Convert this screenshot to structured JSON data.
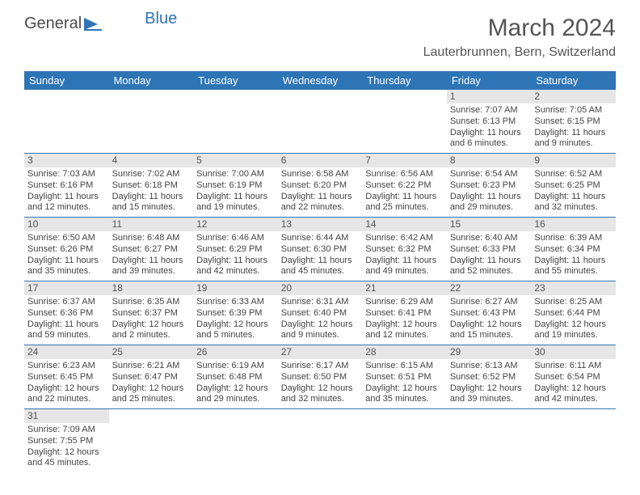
{
  "logo": {
    "text1": "General",
    "text2": "Blue"
  },
  "title": "March 2024",
  "location": "Lauterbrunnen, Bern, Switzerland",
  "colors": {
    "header_bg": "#2e75b6",
    "header_text": "#ffffff",
    "daynum_bg": "#e6e6e6",
    "border": "#2e75b6",
    "text": "#444444",
    "bg": "#ffffff"
  },
  "day_headers": [
    "Sunday",
    "Monday",
    "Tuesday",
    "Wednesday",
    "Thursday",
    "Friday",
    "Saturday"
  ],
  "weeks": [
    [
      null,
      null,
      null,
      null,
      null,
      {
        "n": "1",
        "rise": "Sunrise: 7:07 AM",
        "set": "Sunset: 6:13 PM",
        "day": "Daylight: 11 hours and 6 minutes."
      },
      {
        "n": "2",
        "rise": "Sunrise: 7:05 AM",
        "set": "Sunset: 6:15 PM",
        "day": "Daylight: 11 hours and 9 minutes."
      }
    ],
    [
      {
        "n": "3",
        "rise": "Sunrise: 7:03 AM",
        "set": "Sunset: 6:16 PM",
        "day": "Daylight: 11 hours and 12 minutes."
      },
      {
        "n": "4",
        "rise": "Sunrise: 7:02 AM",
        "set": "Sunset: 6:18 PM",
        "day": "Daylight: 11 hours and 15 minutes."
      },
      {
        "n": "5",
        "rise": "Sunrise: 7:00 AM",
        "set": "Sunset: 6:19 PM",
        "day": "Daylight: 11 hours and 19 minutes."
      },
      {
        "n": "6",
        "rise": "Sunrise: 6:58 AM",
        "set": "Sunset: 6:20 PM",
        "day": "Daylight: 11 hours and 22 minutes."
      },
      {
        "n": "7",
        "rise": "Sunrise: 6:56 AM",
        "set": "Sunset: 6:22 PM",
        "day": "Daylight: 11 hours and 25 minutes."
      },
      {
        "n": "8",
        "rise": "Sunrise: 6:54 AM",
        "set": "Sunset: 6:23 PM",
        "day": "Daylight: 11 hours and 29 minutes."
      },
      {
        "n": "9",
        "rise": "Sunrise: 6:52 AM",
        "set": "Sunset: 6:25 PM",
        "day": "Daylight: 11 hours and 32 minutes."
      }
    ],
    [
      {
        "n": "10",
        "rise": "Sunrise: 6:50 AM",
        "set": "Sunset: 6:26 PM",
        "day": "Daylight: 11 hours and 35 minutes."
      },
      {
        "n": "11",
        "rise": "Sunrise: 6:48 AM",
        "set": "Sunset: 6:27 PM",
        "day": "Daylight: 11 hours and 39 minutes."
      },
      {
        "n": "12",
        "rise": "Sunrise: 6:46 AM",
        "set": "Sunset: 6:29 PM",
        "day": "Daylight: 11 hours and 42 minutes."
      },
      {
        "n": "13",
        "rise": "Sunrise: 6:44 AM",
        "set": "Sunset: 6:30 PM",
        "day": "Daylight: 11 hours and 45 minutes."
      },
      {
        "n": "14",
        "rise": "Sunrise: 6:42 AM",
        "set": "Sunset: 6:32 PM",
        "day": "Daylight: 11 hours and 49 minutes."
      },
      {
        "n": "15",
        "rise": "Sunrise: 6:40 AM",
        "set": "Sunset: 6:33 PM",
        "day": "Daylight: 11 hours and 52 minutes."
      },
      {
        "n": "16",
        "rise": "Sunrise: 6:39 AM",
        "set": "Sunset: 6:34 PM",
        "day": "Daylight: 11 hours and 55 minutes."
      }
    ],
    [
      {
        "n": "17",
        "rise": "Sunrise: 6:37 AM",
        "set": "Sunset: 6:36 PM",
        "day": "Daylight: 11 hours and 59 minutes."
      },
      {
        "n": "18",
        "rise": "Sunrise: 6:35 AM",
        "set": "Sunset: 6:37 PM",
        "day": "Daylight: 12 hours and 2 minutes."
      },
      {
        "n": "19",
        "rise": "Sunrise: 6:33 AM",
        "set": "Sunset: 6:39 PM",
        "day": "Daylight: 12 hours and 5 minutes."
      },
      {
        "n": "20",
        "rise": "Sunrise: 6:31 AM",
        "set": "Sunset: 6:40 PM",
        "day": "Daylight: 12 hours and 9 minutes."
      },
      {
        "n": "21",
        "rise": "Sunrise: 6:29 AM",
        "set": "Sunset: 6:41 PM",
        "day": "Daylight: 12 hours and 12 minutes."
      },
      {
        "n": "22",
        "rise": "Sunrise: 6:27 AM",
        "set": "Sunset: 6:43 PM",
        "day": "Daylight: 12 hours and 15 minutes."
      },
      {
        "n": "23",
        "rise": "Sunrise: 6:25 AM",
        "set": "Sunset: 6:44 PM",
        "day": "Daylight: 12 hours and 19 minutes."
      }
    ],
    [
      {
        "n": "24",
        "rise": "Sunrise: 6:23 AM",
        "set": "Sunset: 6:45 PM",
        "day": "Daylight: 12 hours and 22 minutes."
      },
      {
        "n": "25",
        "rise": "Sunrise: 6:21 AM",
        "set": "Sunset: 6:47 PM",
        "day": "Daylight: 12 hours and 25 minutes."
      },
      {
        "n": "26",
        "rise": "Sunrise: 6:19 AM",
        "set": "Sunset: 6:48 PM",
        "day": "Daylight: 12 hours and 29 minutes."
      },
      {
        "n": "27",
        "rise": "Sunrise: 6:17 AM",
        "set": "Sunset: 6:50 PM",
        "day": "Daylight: 12 hours and 32 minutes."
      },
      {
        "n": "28",
        "rise": "Sunrise: 6:15 AM",
        "set": "Sunset: 6:51 PM",
        "day": "Daylight: 12 hours and 35 minutes."
      },
      {
        "n": "29",
        "rise": "Sunrise: 6:13 AM",
        "set": "Sunset: 6:52 PM",
        "day": "Daylight: 12 hours and 39 minutes."
      },
      {
        "n": "30",
        "rise": "Sunrise: 6:11 AM",
        "set": "Sunset: 6:54 PM",
        "day": "Daylight: 12 hours and 42 minutes."
      }
    ],
    [
      {
        "n": "31",
        "rise": "Sunrise: 7:09 AM",
        "set": "Sunset: 7:55 PM",
        "day": "Daylight: 12 hours and 45 minutes."
      },
      null,
      null,
      null,
      null,
      null,
      null
    ]
  ]
}
